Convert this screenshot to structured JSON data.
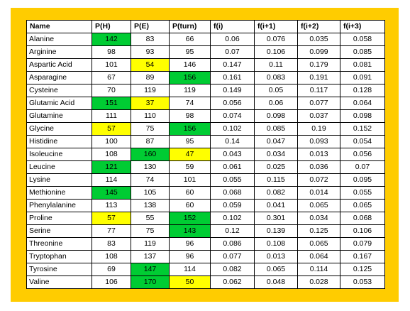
{
  "colors": {
    "frame": "#ffcc00",
    "high": "#00cc33",
    "mid": "#ffff00"
  },
  "table": {
    "headers": [
      "Name",
      "P(H)",
      "P(E)",
      "P(turn)",
      "f(i)",
      "f(i+1)",
      "f(i+2)",
      "f(i+3)"
    ],
    "rows": [
      {
        "cells": [
          "Alanine",
          "142",
          "83",
          "66",
          "0.06",
          "0.076",
          "0.035",
          "0.058"
        ],
        "hl": [
          "",
          "green",
          "",
          "",
          "",
          "",
          "",
          ""
        ]
      },
      {
        "cells": [
          "Arginine",
          "98",
          "93",
          "95",
          "0.07",
          "0.106",
          "0.099",
          "0.085"
        ],
        "hl": [
          "",
          "",
          "",
          "",
          "",
          "",
          "",
          ""
        ]
      },
      {
        "cells": [
          "Aspartic Acid",
          "101",
          "54",
          "146",
          "0.147",
          "0.11",
          "0.179",
          "0.081"
        ],
        "hl": [
          "",
          "",
          "yellow",
          "",
          "",
          "",
          "",
          ""
        ]
      },
      {
        "cells": [
          "Asparagine",
          "67",
          "89",
          "156",
          "0.161",
          "0.083",
          "0.191",
          "0.091"
        ],
        "hl": [
          "",
          "",
          "",
          "green",
          "",
          "",
          "",
          ""
        ]
      },
      {
        "cells": [
          "Cysteine",
          "70",
          "119",
          "119",
          "0.149",
          "0.05",
          "0.117",
          "0.128"
        ],
        "hl": [
          "",
          "",
          "",
          "",
          "",
          "",
          "",
          ""
        ]
      },
      {
        "cells": [
          "Glutamic Acid",
          "151",
          "37",
          "74",
          "0.056",
          "0.06",
          "0.077",
          "0.064"
        ],
        "hl": [
          "",
          "green",
          "yellow",
          "",
          "",
          "",
          "",
          ""
        ]
      },
      {
        "cells": [
          "Glutamine",
          "111",
          "110",
          "98",
          "0.074",
          "0.098",
          "0.037",
          "0.098"
        ],
        "hl": [
          "",
          "",
          "",
          "",
          "",
          "",
          "",
          ""
        ]
      },
      {
        "cells": [
          "Glycine",
          "57",
          "75",
          "156",
          "0.102",
          "0.085",
          "0.19",
          "0.152"
        ],
        "hl": [
          "",
          "yellow",
          "",
          "green",
          "",
          "",
          "",
          ""
        ]
      },
      {
        "cells": [
          "Histidine",
          "100",
          "87",
          "95",
          "0.14",
          "0.047",
          "0.093",
          "0.054"
        ],
        "hl": [
          "",
          "",
          "",
          "",
          "",
          "",
          "",
          ""
        ]
      },
      {
        "cells": [
          "Isoleucine",
          "108",
          "160",
          "47",
          "0.043",
          "0.034",
          "0.013",
          "0.056"
        ],
        "hl": [
          "",
          "",
          "green",
          "yellow",
          "",
          "",
          "",
          ""
        ]
      },
      {
        "cells": [
          "Leucine",
          "121",
          "130",
          "59",
          "0.061",
          "0.025",
          "0.036",
          "0.07"
        ],
        "hl": [
          "",
          "green",
          "",
          "",
          "",
          "",
          "",
          ""
        ]
      },
      {
        "cells": [
          "Lysine",
          "114",
          "74",
          "101",
          "0.055",
          "0.115",
          "0.072",
          "0.095"
        ],
        "hl": [
          "",
          "",
          "",
          "",
          "",
          "",
          "",
          ""
        ]
      },
      {
        "cells": [
          "Methionine",
          "145",
          "105",
          "60",
          "0.068",
          "0.082",
          "0.014",
          "0.055"
        ],
        "hl": [
          "",
          "green",
          "",
          "",
          "",
          "",
          "",
          ""
        ]
      },
      {
        "cells": [
          "Phenylalanine",
          "113",
          "138",
          "60",
          "0.059",
          "0.041",
          "0.065",
          "0.065"
        ],
        "hl": [
          "",
          "",
          "",
          "",
          "",
          "",
          "",
          ""
        ]
      },
      {
        "cells": [
          "Proline",
          "57",
          "55",
          "152",
          "0.102",
          "0.301",
          "0.034",
          "0.068"
        ],
        "hl": [
          "",
          "yellow",
          "",
          "green",
          "",
          "",
          "",
          ""
        ]
      },
      {
        "cells": [
          "Serine",
          "77",
          "75",
          "143",
          "0.12",
          "0.139",
          "0.125",
          "0.106"
        ],
        "hl": [
          "",
          "",
          "",
          "green",
          "",
          "",
          "",
          ""
        ]
      },
      {
        "cells": [
          "Threonine",
          "83",
          "119",
          "96",
          "0.086",
          "0.108",
          "0.065",
          "0.079"
        ],
        "hl": [
          "",
          "",
          "",
          "",
          "",
          "",
          "",
          ""
        ]
      },
      {
        "cells": [
          "Tryptophan",
          "108",
          "137",
          "96",
          "0.077",
          "0.013",
          "0.064",
          "0.167"
        ],
        "hl": [
          "",
          "",
          "",
          "",
          "",
          "",
          "",
          ""
        ]
      },
      {
        "cells": [
          "Tyrosine",
          "69",
          "147",
          "114",
          "0.082",
          "0.065",
          "0.114",
          "0.125"
        ],
        "hl": [
          "",
          "",
          "green",
          "",
          "",
          "",
          "",
          ""
        ]
      },
      {
        "cells": [
          "Valine",
          "106",
          "170",
          "50",
          "0.062",
          "0.048",
          "0.028",
          "0.053"
        ],
        "hl": [
          "",
          "",
          "green",
          "yellow",
          "",
          "",
          "",
          ""
        ]
      }
    ]
  }
}
